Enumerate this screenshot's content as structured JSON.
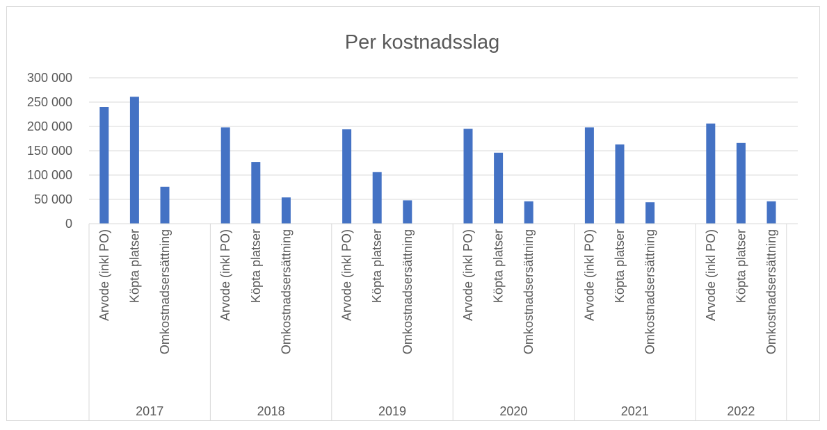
{
  "chart_data": {
    "type": "bar",
    "title": "Per kostnadsslag",
    "color": "#4472c4",
    "grid": true,
    "ylim": [
      0,
      300000
    ],
    "yticks": [
      {
        "value": 0,
        "label": "0"
      },
      {
        "value": 50000,
        "label": "50 000"
      },
      {
        "value": 100000,
        "label": "100 000"
      },
      {
        "value": 150000,
        "label": "150 000"
      },
      {
        "value": 200000,
        "label": "200 000"
      },
      {
        "value": 250000,
        "label": "250 000"
      },
      {
        "value": 300000,
        "label": "300 000"
      }
    ],
    "groups": [
      {
        "name": "2017",
        "categories": [
          "Arvode (inkl PO)",
          "Köpta platser",
          "Omkostnadsersättning",
          null
        ],
        "values": [
          240000,
          261000,
          76000,
          null
        ]
      },
      {
        "name": "2018",
        "categories": [
          "Arvode (inkl PO)",
          "Köpta platser",
          "Omkostnadsersättning",
          null
        ],
        "values": [
          198000,
          127000,
          54000,
          null
        ]
      },
      {
        "name": "2019",
        "categories": [
          "Arvode (inkl PO)",
          "Köpta platser",
          "Omkostnadsersättning",
          null
        ],
        "values": [
          194000,
          106000,
          48000,
          null
        ]
      },
      {
        "name": "2020",
        "categories": [
          "Arvode (inkl PO)",
          "Köpta platser",
          "Omkostnadsersättning",
          null
        ],
        "values": [
          195000,
          146000,
          46000,
          null
        ]
      },
      {
        "name": "2021",
        "categories": [
          "Arvode (inkl PO)",
          "Köpta platser",
          "Omkostnadsersättning",
          null
        ],
        "values": [
          198000,
          163000,
          44000,
          null
        ]
      },
      {
        "name": "2022",
        "categories": [
          "Arvode (inkl PO)",
          "Köpta platser",
          "Omkostnadsersättning"
        ],
        "values": [
          206000,
          166000,
          46000
        ]
      }
    ]
  }
}
